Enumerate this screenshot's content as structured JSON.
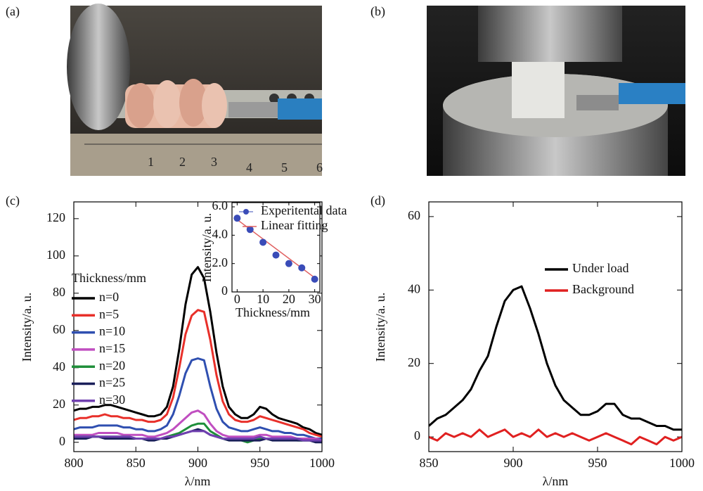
{
  "images": [
    {
      "label": "(a)"
    },
    {
      "label": "(b)"
    }
  ],
  "chart_data": [
    {
      "type": "line",
      "panel": "(c)",
      "xlabel": "λ/nm",
      "ylabel": "Intensity/a. u.",
      "xlim": [
        800,
        1000
      ],
      "ylim": [
        -5,
        129
      ],
      "xticks": [
        800,
        850,
        900,
        950,
        1000
      ],
      "yticks": [
        0,
        20,
        40,
        60,
        80,
        100,
        120
      ],
      "legend_title": "Thickness/mm",
      "x": [
        800,
        805,
        810,
        815,
        820,
        825,
        830,
        835,
        840,
        845,
        850,
        855,
        860,
        865,
        870,
        875,
        880,
        885,
        890,
        895,
        900,
        905,
        910,
        915,
        920,
        925,
        930,
        935,
        940,
        945,
        950,
        955,
        960,
        965,
        970,
        975,
        980,
        985,
        990,
        995,
        1000
      ],
      "series": [
        {
          "name": "n=0",
          "color": "#000000",
          "values": [
            17,
            18,
            18,
            19,
            19,
            20,
            20,
            19,
            18,
            17,
            16,
            15,
            14,
            14,
            15,
            19,
            30,
            50,
            74,
            90,
            94,
            88,
            70,
            48,
            30,
            19,
            15,
            13,
            13,
            15,
            19,
            18,
            15,
            13,
            12,
            11,
            10,
            8,
            7,
            5,
            4
          ]
        },
        {
          "name": "n=5",
          "color": "#e8302a",
          "values": [
            12,
            13,
            13,
            14,
            14,
            15,
            14,
            14,
            13,
            13,
            12,
            12,
            11,
            11,
            12,
            15,
            24,
            40,
            58,
            68,
            71,
            70,
            55,
            36,
            22,
            15,
            12,
            11,
            11,
            12,
            14,
            13,
            12,
            11,
            10,
            9,
            8,
            7,
            5,
            4,
            3
          ]
        },
        {
          "name": "n=10",
          "color": "#2f4fb0",
          "values": [
            7,
            8,
            8,
            8,
            9,
            9,
            9,
            9,
            8,
            8,
            7,
            7,
            6,
            6,
            7,
            9,
            15,
            25,
            37,
            44,
            45,
            44,
            30,
            18,
            11,
            8,
            7,
            6,
            6,
            7,
            8,
            7,
            6,
            6,
            5,
            5,
            4,
            4,
            3,
            2,
            2
          ]
        },
        {
          "name": "n=15",
          "color": "#c04ec0",
          "values": [
            4,
            4,
            4,
            4,
            5,
            5,
            5,
            5,
            4,
            4,
            4,
            4,
            3,
            3,
            4,
            5,
            7,
            10,
            13,
            16,
            17,
            15,
            10,
            6,
            4,
            3,
            3,
            3,
            3,
            3,
            4,
            4,
            3,
            3,
            3,
            3,
            2,
            2,
            2,
            2,
            1
          ]
        },
        {
          "name": "n=20",
          "color": "#1f8f3a",
          "values": [
            3,
            3,
            3,
            3,
            3,
            3,
            3,
            3,
            3,
            3,
            2,
            2,
            2,
            2,
            2,
            3,
            4,
            5,
            7,
            9,
            10,
            10,
            6,
            4,
            2,
            2,
            2,
            1,
            0,
            1,
            2,
            2,
            2,
            2,
            2,
            2,
            1,
            1,
            1,
            1,
            0
          ]
        },
        {
          "name": "n=25",
          "color": "#1a1f5a",
          "values": [
            2,
            2,
            2,
            3,
            3,
            2,
            2,
            2,
            2,
            2,
            2,
            2,
            1,
            1,
            2,
            2,
            3,
            4,
            5,
            6,
            7,
            6,
            4,
            3,
            2,
            1,
            1,
            1,
            1,
            1,
            1,
            2,
            1,
            1,
            1,
            1,
            1,
            1,
            1,
            0,
            0
          ]
        },
        {
          "name": "n=30",
          "color": "#7040b0",
          "values": [
            3,
            3,
            3,
            3,
            3,
            3,
            3,
            3,
            3,
            3,
            2,
            2,
            2,
            2,
            2,
            3,
            3,
            4,
            5,
            6,
            6,
            6,
            4,
            3,
            2,
            2,
            2,
            2,
            2,
            2,
            3,
            2,
            2,
            2,
            2,
            2,
            2,
            1,
            1,
            1,
            1
          ]
        }
      ]
    },
    {
      "type": "scatter",
      "xlabel": "Thickness/mm",
      "ylabel": "Intensity/a. u.",
      "xlim": [
        -2,
        32
      ],
      "ylim": [
        0,
        6.3
      ],
      "xticks": [
        0,
        10,
        20,
        30
      ],
      "yticks": [
        0,
        {
          "value": 2,
          "label": "2.0"
        },
        {
          "value": 4,
          "label": "4.0"
        },
        {
          "value": 6,
          "label": "6.0"
        }
      ],
      "series": [
        {
          "name": "Experitental data",
          "color": "#3a4cb8",
          "style": "markers",
          "x": [
            0,
            5,
            10,
            15,
            20,
            25,
            30
          ],
          "values": [
            5.2,
            4.4,
            3.5,
            2.6,
            2.0,
            1.7,
            0.9
          ]
        },
        {
          "name": "Linear fitting",
          "color": "#e06060",
          "style": "line",
          "x": [
            0,
            30
          ],
          "values": [
            5.1,
            1.0
          ]
        }
      ]
    },
    {
      "type": "line",
      "panel": "(d)",
      "xlabel": "λ/nm",
      "ylabel": "Intensity/a. u.",
      "xlim": [
        850,
        1000
      ],
      "ylim": [
        -4,
        64
      ],
      "xticks": [
        850,
        900,
        950,
        1000
      ],
      "yticks": [
        0,
        20,
        40,
        60
      ],
      "x": [
        850,
        855,
        860,
        865,
        870,
        875,
        880,
        885,
        890,
        895,
        900,
        905,
        910,
        915,
        920,
        925,
        930,
        935,
        940,
        945,
        950,
        955,
        960,
        965,
        970,
        975,
        980,
        985,
        990,
        995,
        1000
      ],
      "series": [
        {
          "name": "Under load",
          "color": "#000000",
          "values": [
            3,
            5,
            6,
            8,
            10,
            13,
            18,
            22,
            30,
            37,
            40,
            41,
            35,
            28,
            20,
            14,
            10,
            8,
            6,
            6,
            7,
            9,
            9,
            6,
            5,
            5,
            4,
            3,
            3,
            2,
            2
          ]
        },
        {
          "name": "Background",
          "color": "#e02020",
          "values": [
            0,
            -1,
            1,
            0,
            1,
            0,
            2,
            0,
            1,
            2,
            0,
            1,
            0,
            2,
            0,
            1,
            0,
            1,
            0,
            -1,
            0,
            1,
            0,
            -1,
            -2,
            0,
            -1,
            -2,
            0,
            -1,
            0
          ]
        }
      ]
    }
  ]
}
